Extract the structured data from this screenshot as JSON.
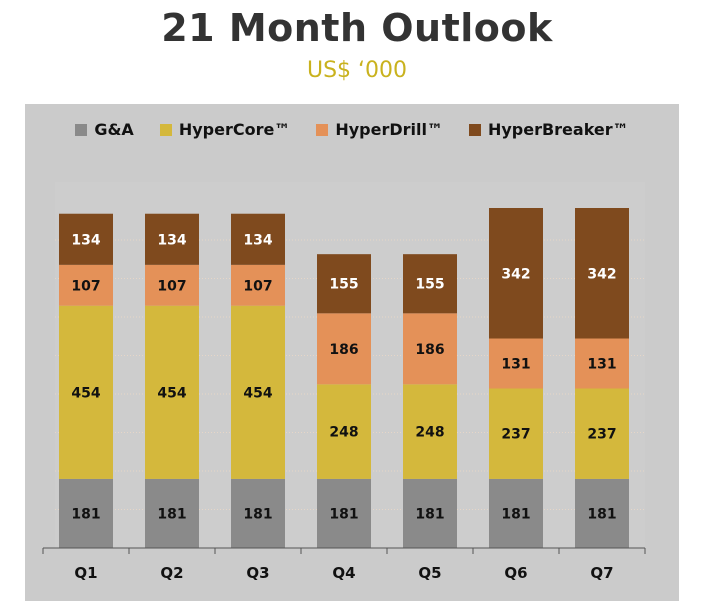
{
  "chart_data": {
    "type": "bar",
    "stacked": true,
    "title": "21 Month Outlook",
    "subtitle": "US$ ‘000",
    "xlabel": "",
    "ylabel": "",
    "categories": [
      "Q1",
      "Q2",
      "Q3",
      "Q4",
      "Q5",
      "Q6",
      "Q7"
    ],
    "series": [
      {
        "name": "G&A",
        "color": "#8a8a8a",
        "label_color": "#111111",
        "values": [
          181,
          181,
          181,
          181,
          181,
          181,
          181
        ]
      },
      {
        "name": "HyperCore™",
        "color": "#d4b83c",
        "label_color": "#111111",
        "values": [
          454,
          454,
          454,
          248,
          248,
          237,
          237
        ]
      },
      {
        "name": "HyperDrill™",
        "color": "#e49158",
        "label_color": "#111111",
        "values": [
          107,
          107,
          107,
          186,
          186,
          131,
          131
        ]
      },
      {
        "name": "HyperBreaker™",
        "color": "#7f4a1e",
        "label_color": "#ffffff",
        "values": [
          134,
          134,
          134,
          155,
          155,
          342,
          342
        ]
      }
    ],
    "ylim": [
      0,
      1000
    ],
    "grid": true,
    "legend_position": "top"
  }
}
